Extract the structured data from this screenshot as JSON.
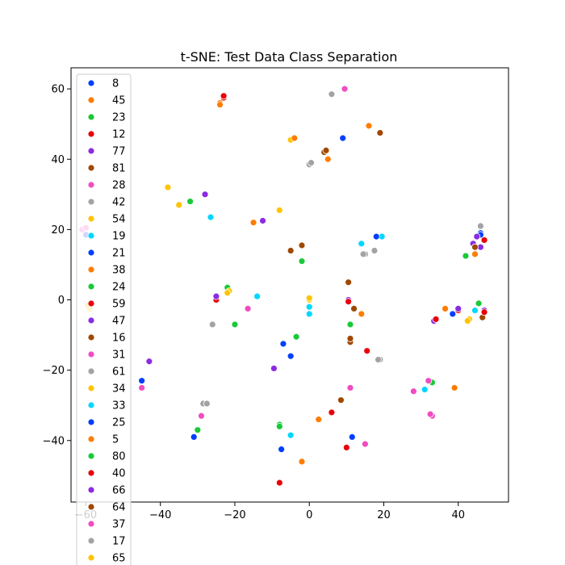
{
  "chart_data": {
    "type": "scatter",
    "title": "t-SNE: Test Data Class Separation",
    "xlabel": "",
    "ylabel": "",
    "xlim": [
      -64,
      53.5
    ],
    "ylim": [
      -57.5,
      66
    ],
    "xticks": [
      -60,
      -40,
      -20,
      0,
      20,
      40
    ],
    "yticks": [
      -40,
      -20,
      0,
      20,
      40,
      60
    ],
    "grid": false,
    "legend_position": "top-left",
    "series": [
      {
        "name": "8",
        "color": "#023eff",
        "points": [
          [
            18,
            18
          ],
          [
            -45,
            -23
          ],
          [
            -31,
            -39
          ],
          [
            9,
            46
          ],
          [
            38.5,
            -4
          ]
        ]
      },
      {
        "name": "45",
        "color": "#ff7c00",
        "points": [
          [
            -24,
            56
          ],
          [
            16,
            49.5
          ],
          [
            -15,
            22
          ],
          [
            14,
            -4
          ]
        ]
      },
      {
        "name": "23",
        "color": "#1ac938",
        "points": [
          [
            -22,
            3.5
          ],
          [
            -32,
            28
          ],
          [
            45.5,
            -1
          ],
          [
            -8,
            -35.5
          ]
        ]
      },
      {
        "name": "12",
        "color": "#e8000b",
        "points": [
          [
            -23,
            57.5
          ],
          [
            6,
            -32
          ],
          [
            47,
            17
          ],
          [
            -8,
            -52
          ]
        ]
      },
      {
        "name": "77",
        "color": "#8b2be2",
        "points": [
          [
            -28,
            30
          ],
          [
            10.5,
            0
          ],
          [
            -43,
            -17.5
          ],
          [
            47,
            -3
          ]
        ]
      },
      {
        "name": "81",
        "color": "#9f4800",
        "points": [
          [
            19,
            47.5
          ],
          [
            4,
            42
          ],
          [
            10.5,
            5
          ],
          [
            -2,
            15.5
          ]
        ]
      },
      {
        "name": "28",
        "color": "#f14cc1",
        "points": [
          [
            9.5,
            60
          ],
          [
            33,
            -33
          ],
          [
            -29,
            -33
          ],
          [
            15,
            -41
          ]
        ]
      },
      {
        "name": "42",
        "color": "#a3a3a3",
        "points": [
          [
            6,
            58.5
          ],
          [
            0,
            38.5
          ],
          [
            -26,
            -7
          ],
          [
            19,
            -17
          ]
        ]
      },
      {
        "name": "54",
        "color": "#ffc400",
        "points": [
          [
            -5,
            45.5
          ],
          [
            -38,
            32
          ],
          [
            -35,
            27
          ],
          [
            -8,
            25.5
          ]
        ]
      },
      {
        "name": "19",
        "color": "#00d7ff",
        "points": [
          [
            -26.5,
            23.5
          ],
          [
            14,
            16
          ],
          [
            19.5,
            18
          ],
          [
            -14,
            1
          ]
        ]
      },
      {
        "name": "21",
        "color": "#023eff",
        "points": [
          [
            18,
            18
          ],
          [
            46,
            19
          ],
          [
            -7,
            -12.5
          ],
          [
            -5,
            -16
          ]
        ]
      },
      {
        "name": "38",
        "color": "#ff7c00",
        "points": [
          [
            5,
            40
          ],
          [
            39,
            -25
          ],
          [
            44.5,
            13
          ],
          [
            -2,
            -46
          ]
        ]
      },
      {
        "name": "24",
        "color": "#1ac938",
        "points": [
          [
            -20,
            -7
          ],
          [
            -3.5,
            -10.5
          ],
          [
            11,
            -7
          ],
          [
            33,
            -23.5
          ]
        ]
      },
      {
        "name": "59",
        "color": "#e8000b",
        "points": [
          [
            -25,
            0
          ],
          [
            10.5,
            -0.5
          ],
          [
            15.5,
            -14.5
          ],
          [
            10,
            -42
          ]
        ]
      },
      {
        "name": "47",
        "color": "#8b2be2",
        "points": [
          [
            -12.5,
            22.5
          ],
          [
            -25,
            1
          ],
          [
            -9.5,
            -19.5
          ],
          [
            33.5,
            -6
          ]
        ]
      },
      {
        "name": "16",
        "color": "#9f4800",
        "points": [
          [
            -5,
            14
          ],
          [
            11,
            -12
          ],
          [
            46.5,
            -5
          ],
          [
            8.5,
            -28.5
          ]
        ]
      },
      {
        "name": "31",
        "color": "#f14cc1",
        "points": [
          [
            -61,
            20
          ],
          [
            11,
            -25
          ],
          [
            32,
            -23
          ],
          [
            -45,
            -25
          ]
        ]
      },
      {
        "name": "61",
        "color": "#a3a3a3",
        "points": [
          [
            15,
            13
          ],
          [
            17.5,
            14
          ],
          [
            46,
            21
          ],
          [
            -28.5,
            -29.5
          ]
        ]
      },
      {
        "name": "34",
        "color": "#ffc400",
        "points": [
          [
            -21.5,
            2.5
          ],
          [
            0,
            0
          ],
          [
            43,
            -5.5
          ],
          [
            -59,
            -2.5
          ]
        ]
      },
      {
        "name": "33",
        "color": "#00d7ff",
        "points": [
          [
            0,
            -2
          ],
          [
            0,
            -4
          ],
          [
            44.5,
            -3
          ],
          [
            31,
            -25.5
          ],
          [
            -5,
            -38.5
          ]
        ]
      },
      {
        "name": "25",
        "color": "#023eff",
        "points": [
          [
            -60,
            18.5
          ],
          [
            46,
            18.5
          ],
          [
            11.5,
            -39
          ],
          [
            -7.5,
            -42.5
          ]
        ]
      },
      {
        "name": "5",
        "color": "#ff7c00",
        "points": [
          [
            -24,
            55.5
          ],
          [
            36.5,
            -2.5
          ],
          [
            2.5,
            -34
          ],
          [
            -4,
            46
          ]
        ]
      },
      {
        "name": "80",
        "color": "#1ac938",
        "points": [
          [
            -2,
            11
          ],
          [
            42,
            12.5
          ],
          [
            -30,
            -37
          ],
          [
            -8,
            -36
          ]
        ]
      },
      {
        "name": "40",
        "color": "#e8000b",
        "points": [
          [
            -23,
            58
          ],
          [
            40,
            -3
          ],
          [
            34,
            -5.5
          ],
          [
            47,
            -3.5
          ]
        ]
      },
      {
        "name": "66",
        "color": "#8b2be2",
        "points": [
          [
            45,
            18
          ],
          [
            46,
            15
          ],
          [
            40,
            -2.5
          ],
          [
            44,
            16
          ]
        ]
      },
      {
        "name": "64",
        "color": "#9f4800",
        "points": [
          [
            4.5,
            42.5
          ],
          [
            11,
            -11
          ],
          [
            12,
            -2.5
          ],
          [
            44.5,
            15
          ]
        ]
      },
      {
        "name": "37",
        "color": "#f14cc1",
        "points": [
          [
            -16.5,
            -2.5
          ],
          [
            28,
            -26
          ],
          [
            32.5,
            -32.5
          ],
          [
            -60,
            20.5
          ]
        ]
      },
      {
        "name": "17",
        "color": "#a3a3a3",
        "points": [
          [
            0.5,
            39
          ],
          [
            14.5,
            13
          ],
          [
            18.5,
            -17
          ],
          [
            -27.5,
            -29.5
          ]
        ]
      },
      {
        "name": "65",
        "color": "#ffc400",
        "points": [
          [
            -59.5,
            -1.5
          ],
          [
            -22,
            2
          ],
          [
            42.5,
            -6
          ],
          [
            0,
            0.5
          ]
        ]
      }
    ]
  }
}
